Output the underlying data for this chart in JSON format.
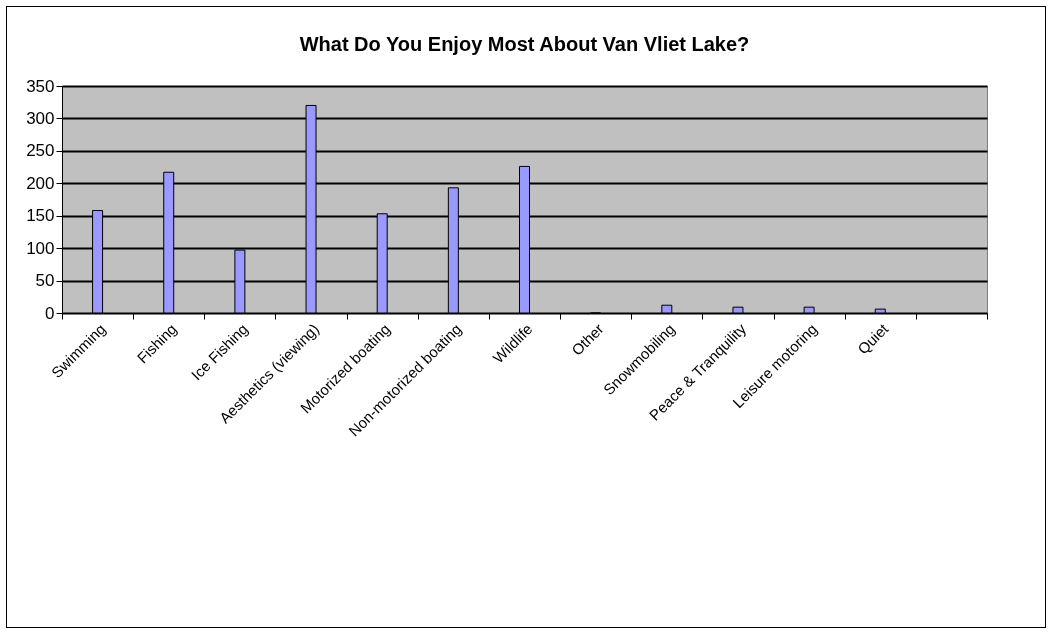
{
  "chart_data": {
    "type": "bar",
    "title": "What Do You Enjoy Most About Van Vliet Lake?",
    "categories": [
      "Swimming",
      "Fishing",
      "Ice Fishing",
      "Aesthetics (viewing)",
      "Motorized boating",
      "Non-motorized boating",
      "Wildlife",
      "Other",
      "Snowmobiling",
      "Peace & Tranquility",
      "Leisure motoring",
      "Quiet",
      null
    ],
    "values": [
      158,
      217,
      97,
      320,
      153,
      193,
      226,
      0,
      12,
      9,
      9,
      6,
      null
    ],
    "color": "#9999ff",
    "ylim": [
      0,
      350
    ],
    "yticks": [
      0,
      50,
      100,
      150,
      200,
      250,
      300,
      350
    ],
    "grid": "y"
  }
}
